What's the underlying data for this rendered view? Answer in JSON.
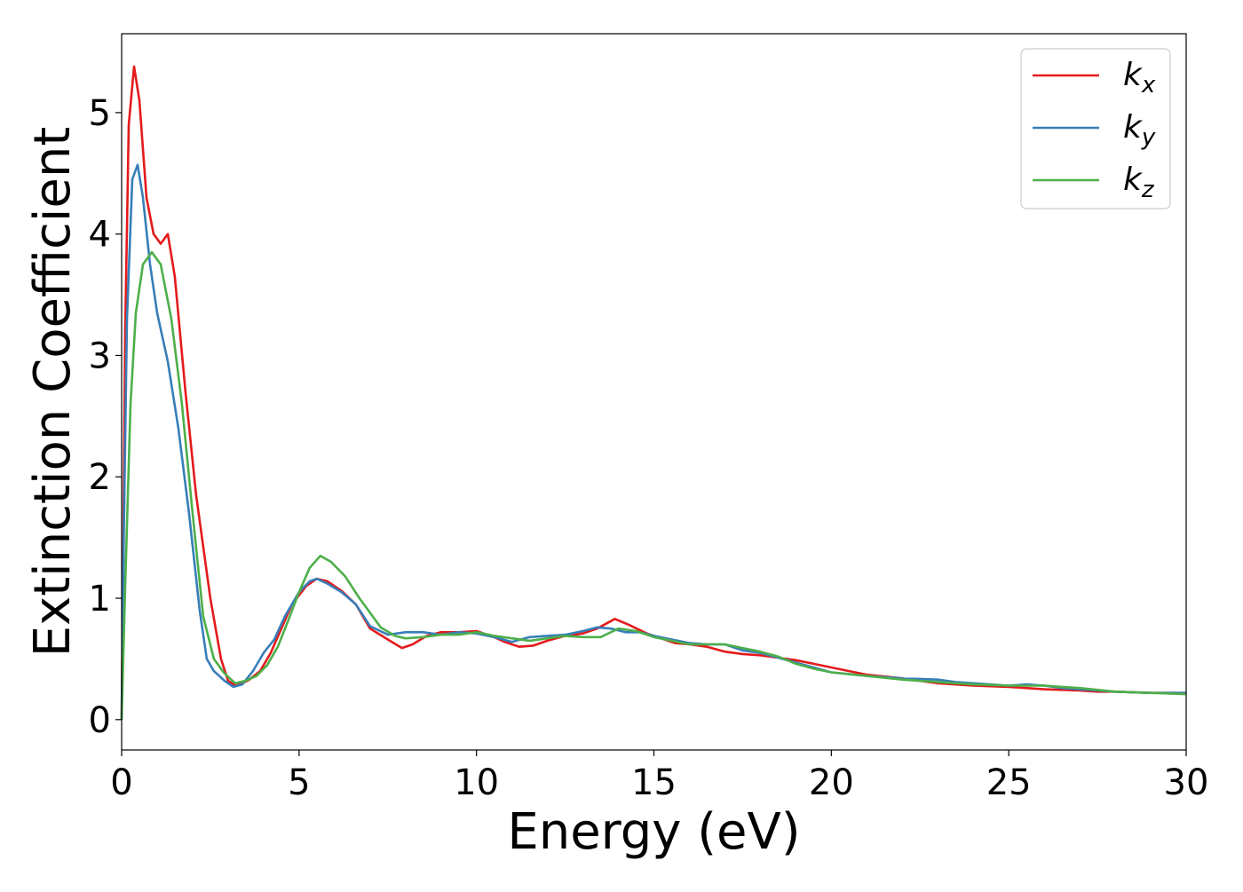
{
  "chart_data": {
    "type": "line",
    "title": "",
    "xlabel": "Energy (eV)",
    "ylabel": "Extinction Coefficient",
    "xlim": [
      0,
      30
    ],
    "ylim": [
      -0.25,
      5.65
    ],
    "xticks": [
      0,
      5,
      10,
      15,
      20,
      25,
      30
    ],
    "yticks": [
      0,
      1,
      2,
      3,
      4,
      5
    ],
    "xtick_labels": [
      "0",
      "5",
      "10",
      "15",
      "20",
      "25",
      "30"
    ],
    "ytick_labels": [
      "0",
      "1",
      "2",
      "3",
      "4",
      "5"
    ],
    "grid": false,
    "legend_position": "top-right",
    "series": [
      {
        "name": "k_x",
        "color": "#e41a1c",
        "points": [
          [
            0,
            0
          ],
          [
            0.05,
            1.5
          ],
          [
            0.1,
            3.2
          ],
          [
            0.2,
            4.9
          ],
          [
            0.35,
            5.38
          ],
          [
            0.5,
            5.1
          ],
          [
            0.7,
            4.3
          ],
          [
            0.9,
            4.0
          ],
          [
            1.1,
            3.92
          ],
          [
            1.3,
            4.0
          ],
          [
            1.5,
            3.65
          ],
          [
            1.8,
            2.7
          ],
          [
            2.1,
            1.85
          ],
          [
            2.5,
            1.0
          ],
          [
            2.8,
            0.5
          ],
          [
            3.0,
            0.32
          ],
          [
            3.2,
            0.28
          ],
          [
            3.4,
            0.3
          ],
          [
            3.6,
            0.33
          ],
          [
            3.9,
            0.4
          ],
          [
            4.2,
            0.55
          ],
          [
            4.5,
            0.75
          ],
          [
            4.8,
            0.95
          ],
          [
            5.2,
            1.1
          ],
          [
            5.5,
            1.16
          ],
          [
            5.8,
            1.14
          ],
          [
            6.2,
            1.06
          ],
          [
            6.6,
            0.95
          ],
          [
            7.0,
            0.75
          ],
          [
            7.5,
            0.66
          ],
          [
            7.9,
            0.59
          ],
          [
            8.2,
            0.62
          ],
          [
            8.6,
            0.69
          ],
          [
            9.0,
            0.72
          ],
          [
            9.5,
            0.72
          ],
          [
            10.0,
            0.73
          ],
          [
            10.5,
            0.68
          ],
          [
            10.8,
            0.64
          ],
          [
            11.2,
            0.6
          ],
          [
            11.6,
            0.61
          ],
          [
            12.0,
            0.65
          ],
          [
            12.5,
            0.69
          ],
          [
            13.0,
            0.71
          ],
          [
            13.4,
            0.75
          ],
          [
            13.9,
            0.83
          ],
          [
            14.3,
            0.78
          ],
          [
            14.8,
            0.71
          ],
          [
            15.2,
            0.67
          ],
          [
            15.6,
            0.63
          ],
          [
            16.0,
            0.62
          ],
          [
            16.5,
            0.6
          ],
          [
            17.0,
            0.56
          ],
          [
            17.5,
            0.54
          ],
          [
            18.0,
            0.53
          ],
          [
            18.5,
            0.51
          ],
          [
            19.0,
            0.49
          ],
          [
            19.5,
            0.46
          ],
          [
            20.0,
            0.43
          ],
          [
            20.5,
            0.4
          ],
          [
            21.0,
            0.37
          ],
          [
            22.0,
            0.34
          ],
          [
            23.0,
            0.3
          ],
          [
            24.0,
            0.28
          ],
          [
            25.0,
            0.27
          ],
          [
            26.0,
            0.25
          ],
          [
            27.0,
            0.24
          ],
          [
            27.5,
            0.23
          ],
          [
            28.0,
            0.23
          ],
          [
            29.0,
            0.22
          ],
          [
            30.0,
            0.22
          ]
        ]
      },
      {
        "name": "k_y",
        "color": "#377eb8",
        "points": [
          [
            0,
            0
          ],
          [
            0.05,
            1.3
          ],
          [
            0.15,
            3.3
          ],
          [
            0.3,
            4.45
          ],
          [
            0.45,
            4.57
          ],
          [
            0.6,
            4.3
          ],
          [
            0.8,
            3.75
          ],
          [
            1.0,
            3.35
          ],
          [
            1.3,
            2.95
          ],
          [
            1.6,
            2.4
          ],
          [
            1.9,
            1.7
          ],
          [
            2.2,
            0.9
          ],
          [
            2.4,
            0.5
          ],
          [
            2.6,
            0.4
          ],
          [
            2.9,
            0.32
          ],
          [
            3.15,
            0.27
          ],
          [
            3.4,
            0.29
          ],
          [
            3.7,
            0.4
          ],
          [
            4.0,
            0.55
          ],
          [
            4.3,
            0.66
          ],
          [
            4.6,
            0.85
          ],
          [
            5.0,
            1.05
          ],
          [
            5.3,
            1.14
          ],
          [
            5.5,
            1.16
          ],
          [
            5.8,
            1.12
          ],
          [
            6.2,
            1.05
          ],
          [
            6.6,
            0.95
          ],
          [
            7.0,
            0.77
          ],
          [
            7.5,
            0.7
          ],
          [
            8.0,
            0.72
          ],
          [
            8.5,
            0.72
          ],
          [
            9.0,
            0.7
          ],
          [
            9.5,
            0.72
          ],
          [
            10.0,
            0.71
          ],
          [
            10.5,
            0.68
          ],
          [
            11.0,
            0.64
          ],
          [
            11.5,
            0.68
          ],
          [
            12.0,
            0.69
          ],
          [
            12.5,
            0.7
          ],
          [
            13.0,
            0.73
          ],
          [
            13.4,
            0.76
          ],
          [
            13.8,
            0.75
          ],
          [
            14.2,
            0.72
          ],
          [
            14.6,
            0.72
          ],
          [
            15.0,
            0.69
          ],
          [
            15.5,
            0.66
          ],
          [
            16.0,
            0.63
          ],
          [
            16.5,
            0.62
          ],
          [
            17.0,
            0.62
          ],
          [
            17.5,
            0.57
          ],
          [
            18.0,
            0.55
          ],
          [
            18.5,
            0.51
          ],
          [
            19.0,
            0.47
          ],
          [
            19.5,
            0.43
          ],
          [
            20.0,
            0.39
          ],
          [
            21.0,
            0.36
          ],
          [
            22.0,
            0.34
          ],
          [
            23.0,
            0.33
          ],
          [
            23.5,
            0.31
          ],
          [
            24.0,
            0.3
          ],
          [
            25.0,
            0.28
          ],
          [
            25.5,
            0.29
          ],
          [
            26.0,
            0.28
          ],
          [
            26.5,
            0.26
          ],
          [
            27.0,
            0.25
          ],
          [
            28.0,
            0.23
          ],
          [
            29.0,
            0.22
          ],
          [
            30.0,
            0.22
          ]
        ]
      },
      {
        "name": "k_z",
        "color": "#4daf4a",
        "points": [
          [
            0,
            0
          ],
          [
            0.1,
            1.1
          ],
          [
            0.25,
            2.6
          ],
          [
            0.4,
            3.35
          ],
          [
            0.6,
            3.75
          ],
          [
            0.85,
            3.85
          ],
          [
            1.1,
            3.75
          ],
          [
            1.4,
            3.3
          ],
          [
            1.7,
            2.6
          ],
          [
            2.0,
            1.7
          ],
          [
            2.3,
            0.85
          ],
          [
            2.6,
            0.5
          ],
          [
            2.9,
            0.38
          ],
          [
            3.2,
            0.3
          ],
          [
            3.5,
            0.32
          ],
          [
            3.8,
            0.36
          ],
          [
            4.1,
            0.45
          ],
          [
            4.4,
            0.6
          ],
          [
            4.7,
            0.82
          ],
          [
            5.0,
            1.05
          ],
          [
            5.3,
            1.25
          ],
          [
            5.6,
            1.35
          ],
          [
            5.9,
            1.3
          ],
          [
            6.3,
            1.18
          ],
          [
            6.7,
            1.0
          ],
          [
            7.0,
            0.88
          ],
          [
            7.3,
            0.76
          ],
          [
            7.7,
            0.69
          ],
          [
            8.0,
            0.67
          ],
          [
            8.5,
            0.68
          ],
          [
            9.0,
            0.7
          ],
          [
            9.5,
            0.7
          ],
          [
            10.0,
            0.72
          ],
          [
            10.5,
            0.69
          ],
          [
            11.0,
            0.67
          ],
          [
            11.5,
            0.65
          ],
          [
            12.0,
            0.67
          ],
          [
            12.5,
            0.69
          ],
          [
            13.0,
            0.68
          ],
          [
            13.5,
            0.68
          ],
          [
            14.0,
            0.75
          ],
          [
            14.5,
            0.73
          ],
          [
            15.0,
            0.68
          ],
          [
            15.5,
            0.65
          ],
          [
            16.0,
            0.62
          ],
          [
            16.5,
            0.62
          ],
          [
            17.0,
            0.62
          ],
          [
            17.5,
            0.59
          ],
          [
            18.0,
            0.56
          ],
          [
            18.5,
            0.52
          ],
          [
            19.0,
            0.46
          ],
          [
            19.5,
            0.42
          ],
          [
            20.0,
            0.39
          ],
          [
            21.0,
            0.36
          ],
          [
            22.0,
            0.33
          ],
          [
            23.0,
            0.31
          ],
          [
            24.0,
            0.29
          ],
          [
            25.0,
            0.28
          ],
          [
            26.0,
            0.28
          ],
          [
            26.5,
            0.27
          ],
          [
            27.0,
            0.26
          ],
          [
            28.0,
            0.23
          ],
          [
            29.0,
            0.22
          ],
          [
            30.0,
            0.21
          ]
        ]
      }
    ],
    "legend": [
      {
        "base": "k",
        "sub": "x",
        "color": "#e41a1c"
      },
      {
        "base": "k",
        "sub": "y",
        "color": "#377eb8"
      },
      {
        "base": "k",
        "sub": "z",
        "color": "#4daf4a"
      }
    ]
  }
}
